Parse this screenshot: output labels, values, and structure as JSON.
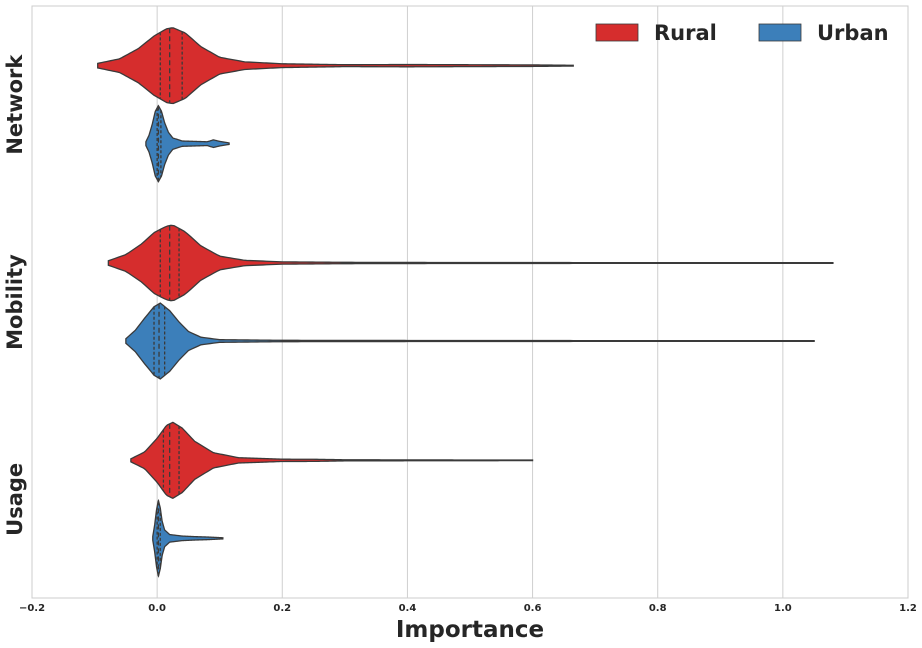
{
  "chart_data": {
    "type": "violin",
    "title": "",
    "xlabel": "Importance",
    "ylabel": "",
    "xlim": [
      -0.2,
      1.2
    ],
    "xticks": [
      -0.2,
      0.0,
      0.2,
      0.4,
      0.6,
      0.8,
      1.0,
      1.2
    ],
    "xtick_labels": [
      "−0.2",
      "0.0",
      "0.2",
      "0.4",
      "0.6",
      "0.8",
      "1.0",
      "1.2"
    ],
    "categories": [
      "Network",
      "Mobility",
      "Usage"
    ],
    "grid": "vertical",
    "legend_position": "top-right",
    "series": [
      {
        "name": "Rural",
        "color": "#d62d2d",
        "groups": [
          {
            "category": "Network",
            "min": -0.095,
            "max": 0.665,
            "q1": 0.005,
            "median": 0.02,
            "q3": 0.04,
            "density": [
              [
                -0.095,
                0.06
              ],
              [
                -0.06,
                0.18
              ],
              [
                -0.03,
                0.45
              ],
              [
                -0.005,
                0.78
              ],
              [
                0.015,
                0.97
              ],
              [
                0.025,
                1.0
              ],
              [
                0.045,
                0.86
              ],
              [
                0.07,
                0.5
              ],
              [
                0.1,
                0.22
              ],
              [
                0.14,
                0.1
              ],
              [
                0.2,
                0.05
              ],
              [
                0.3,
                0.025
              ],
              [
                0.4,
                0.03
              ],
              [
                0.5,
                0.025
              ],
              [
                0.6,
                0.02
              ],
              [
                0.665,
                0.01
              ]
            ]
          },
          {
            "category": "Mobility",
            "min": -0.078,
            "max": 1.08,
            "q1": 0.005,
            "median": 0.02,
            "q3": 0.035,
            "density": [
              [
                -0.078,
                0.06
              ],
              [
                -0.05,
                0.22
              ],
              [
                -0.025,
                0.5
              ],
              [
                -0.005,
                0.8
              ],
              [
                0.015,
                0.97
              ],
              [
                0.025,
                1.0
              ],
              [
                0.045,
                0.82
              ],
              [
                0.07,
                0.45
              ],
              [
                0.1,
                0.18
              ],
              [
                0.14,
                0.07
              ],
              [
                0.2,
                0.03
              ],
              [
                0.3,
                0.018
              ],
              [
                0.5,
                0.012
              ],
              [
                0.8,
                0.01
              ],
              [
                1.08,
                0.008
              ]
            ]
          },
          {
            "category": "Usage",
            "min": -0.042,
            "max": 0.6,
            "q1": 0.01,
            "median": 0.02,
            "q3": 0.035,
            "density": [
              [
                -0.042,
                0.04
              ],
              [
                -0.02,
                0.22
              ],
              [
                0.0,
                0.58
              ],
              [
                0.015,
                0.92
              ],
              [
                0.025,
                1.0
              ],
              [
                0.04,
                0.85
              ],
              [
                0.06,
                0.5
              ],
              [
                0.09,
                0.2
              ],
              [
                0.13,
                0.07
              ],
              [
                0.2,
                0.03
              ],
              [
                0.25,
                0.028
              ],
              [
                0.3,
                0.015
              ],
              [
                0.45,
                0.01
              ],
              [
                0.6,
                0.008
              ]
            ]
          }
        ]
      },
      {
        "name": "Urban",
        "color": "#3c7fba",
        "groups": [
          {
            "category": "Network",
            "min": -0.018,
            "max": 0.115,
            "q1": 0.0,
            "median": 0.002,
            "q3": 0.006,
            "density": [
              [
                -0.018,
                0.05
              ],
              [
                -0.013,
                0.22
              ],
              [
                -0.008,
                0.5
              ],
              [
                -0.003,
                0.85
              ],
              [
                0.002,
                1.0
              ],
              [
                0.007,
                0.85
              ],
              [
                0.012,
                0.55
              ],
              [
                0.018,
                0.3
              ],
              [
                0.025,
                0.15
              ],
              [
                0.04,
                0.07
              ],
              [
                0.06,
                0.06
              ],
              [
                0.08,
                0.05
              ],
              [
                0.09,
                0.1
              ],
              [
                0.1,
                0.06
              ],
              [
                0.115,
                0.02
              ]
            ]
          },
          {
            "category": "Mobility",
            "min": -0.05,
            "max": 1.05,
            "q1": -0.005,
            "median": 0.003,
            "q3": 0.012,
            "density": [
              [
                -0.05,
                0.06
              ],
              [
                -0.035,
                0.28
              ],
              [
                -0.02,
                0.6
              ],
              [
                -0.005,
                0.9
              ],
              [
                0.005,
                1.0
              ],
              [
                0.02,
                0.8
              ],
              [
                0.035,
                0.5
              ],
              [
                0.05,
                0.25
              ],
              [
                0.07,
                0.1
              ],
              [
                0.1,
                0.035
              ],
              [
                0.2,
                0.018
              ],
              [
                0.5,
                0.012
              ],
              [
                0.8,
                0.01
              ],
              [
                1.05,
                0.008
              ]
            ]
          },
          {
            "category": "Usage",
            "min": -0.007,
            "max": 0.105,
            "q1": 0.0,
            "median": 0.002,
            "q3": 0.005,
            "density": [
              [
                -0.007,
                0.05
              ],
              [
                -0.004,
                0.35
              ],
              [
                -0.001,
                0.75
              ],
              [
                0.002,
                1.0
              ],
              [
                0.005,
                0.8
              ],
              [
                0.008,
                0.45
              ],
              [
                0.012,
                0.22
              ],
              [
                0.02,
                0.1
              ],
              [
                0.04,
                0.06
              ],
              [
                0.06,
                0.045
              ],
              [
                0.08,
                0.035
              ],
              [
                0.105,
                0.015
              ]
            ]
          }
        ]
      }
    ]
  }
}
